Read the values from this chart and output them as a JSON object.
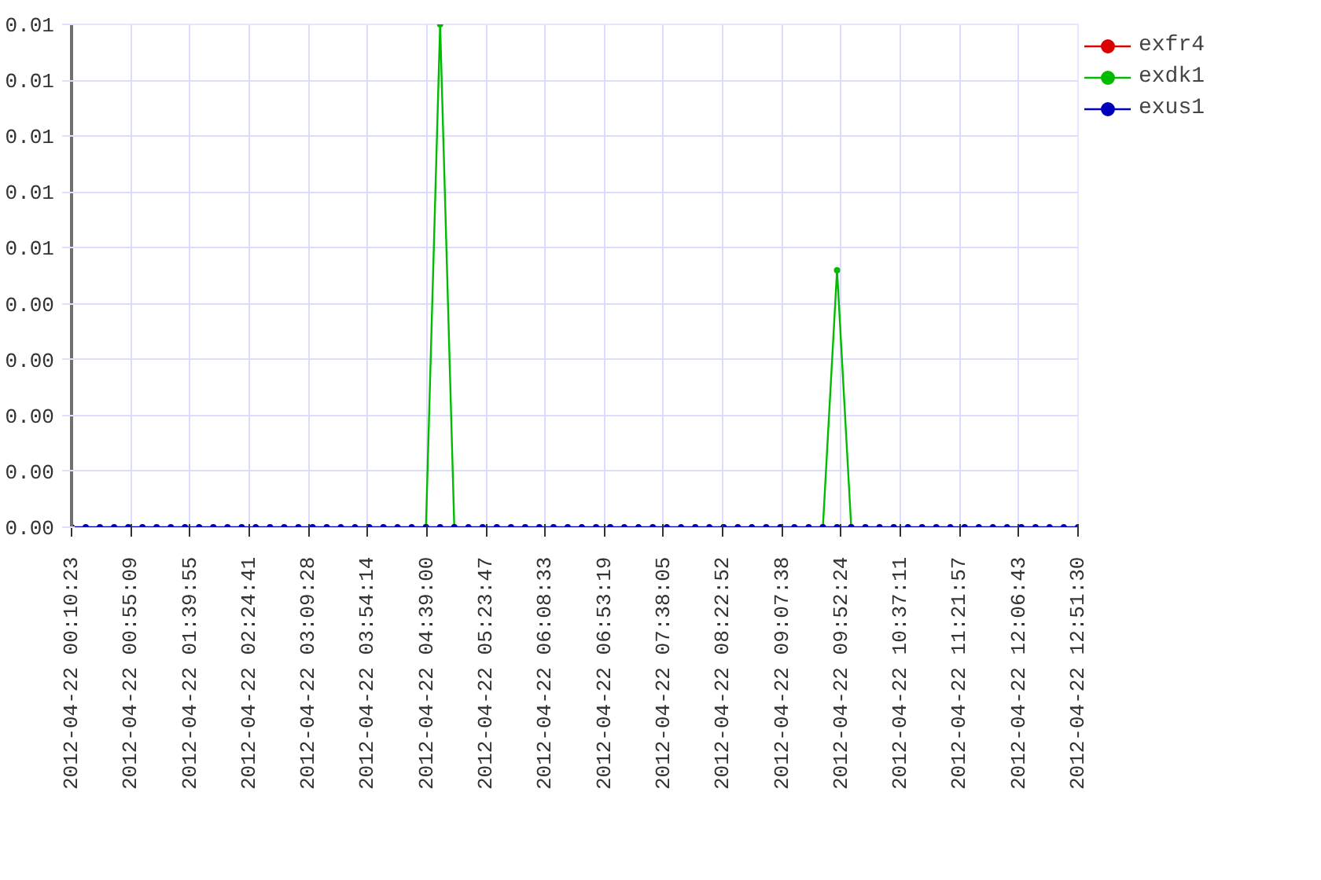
{
  "chart_data": {
    "type": "line",
    "x": [
      "2012-04-22T00:10:23",
      "2012-04-22T00:21:06",
      "2012-04-22T00:31:49",
      "2012-04-22T00:42:33",
      "2012-04-22T00:53:16",
      "2012-04-22T01:03:59",
      "2012-04-22T01:14:42",
      "2012-04-22T01:25:25",
      "2012-04-22T01:36:09",
      "2012-04-22T01:46:52",
      "2012-04-22T01:57:35",
      "2012-04-22T02:08:18",
      "2012-04-22T02:19:01",
      "2012-04-22T02:29:45",
      "2012-04-22T02:40:28",
      "2012-04-22T02:51:11",
      "2012-04-22T03:01:54",
      "2012-04-22T03:12:37",
      "2012-04-22T03:23:21",
      "2012-04-22T03:34:04",
      "2012-04-22T03:44:47",
      "2012-04-22T03:55:30",
      "2012-04-22T04:06:13",
      "2012-04-22T04:16:57",
      "2012-04-22T04:27:40",
      "2012-04-22T04:38:23",
      "2012-04-22T04:49:06",
      "2012-04-22T04:59:49",
      "2012-04-22T05:10:33",
      "2012-04-22T05:21:16",
      "2012-04-22T05:31:59",
      "2012-04-22T05:42:42",
      "2012-04-22T05:53:25",
      "2012-04-22T06:04:09",
      "2012-04-22T06:14:52",
      "2012-04-22T06:25:35",
      "2012-04-22T06:36:18",
      "2012-04-22T06:47:01",
      "2012-04-22T06:57:45",
      "2012-04-22T07:08:28",
      "2012-04-22T07:19:11",
      "2012-04-22T07:29:54",
      "2012-04-22T07:40:37",
      "2012-04-22T07:51:21",
      "2012-04-22T08:02:04",
      "2012-04-22T08:12:47",
      "2012-04-22T08:23:30",
      "2012-04-22T08:34:13",
      "2012-04-22T08:44:57",
      "2012-04-22T08:55:40",
      "2012-04-22T09:06:23",
      "2012-04-22T09:17:06",
      "2012-04-22T09:27:49",
      "2012-04-22T09:38:33",
      "2012-04-22T09:49:16",
      "2012-04-22T09:59:59",
      "2012-04-22T10:10:42",
      "2012-04-22T10:21:25",
      "2012-04-22T10:32:09",
      "2012-04-22T10:42:52",
      "2012-04-22T10:53:35",
      "2012-04-22T11:04:18",
      "2012-04-22T11:15:01",
      "2012-04-22T11:25:45",
      "2012-04-22T11:36:28",
      "2012-04-22T11:47:11",
      "2012-04-22T11:57:54",
      "2012-04-22T12:08:37",
      "2012-04-22T12:19:21",
      "2012-04-22T12:30:04",
      "2012-04-22T12:40:47",
      "2012-04-22T12:51:30"
    ],
    "series": [
      {
        "name": "exfr4",
        "color": "#dd0000",
        "values": [
          null,
          null,
          null,
          null,
          null,
          null,
          null,
          null,
          null,
          null,
          null,
          null,
          null,
          null,
          null,
          null,
          null,
          null,
          null,
          null,
          null,
          null,
          null,
          null,
          null,
          null,
          null,
          null,
          null,
          null,
          null,
          null,
          null,
          null,
          null,
          null,
          null,
          null,
          null,
          null,
          null,
          null,
          null,
          null,
          null,
          null,
          null,
          null,
          null,
          null,
          null,
          null,
          null,
          null,
          null,
          null,
          null,
          null,
          null,
          null,
          null,
          null,
          null,
          null,
          null,
          null,
          null,
          null,
          null,
          null,
          null,
          null
        ]
      },
      {
        "name": "exdk1",
        "color": "#00bb00",
        "values": [
          null,
          null,
          null,
          null,
          null,
          null,
          null,
          null,
          null,
          null,
          null,
          null,
          null,
          null,
          null,
          null,
          null,
          null,
          null,
          null,
          null,
          null,
          null,
          null,
          null,
          0,
          0.009,
          0,
          null,
          null,
          null,
          null,
          null,
          null,
          null,
          null,
          null,
          null,
          null,
          null,
          null,
          null,
          null,
          null,
          null,
          null,
          null,
          null,
          null,
          null,
          null,
          null,
          null,
          0,
          0.0046,
          0,
          null,
          null,
          null,
          null,
          null,
          null,
          null,
          null,
          null,
          null,
          null,
          null,
          null,
          null,
          null,
          null
        ]
      },
      {
        "name": "exus1",
        "color": "#0000bb",
        "values": [
          0,
          0,
          0,
          0,
          0,
          0,
          0,
          0,
          0,
          0,
          0,
          0,
          0,
          0,
          0,
          0,
          0,
          0,
          0,
          0,
          0,
          0,
          0,
          0,
          0,
          0,
          0,
          0,
          0,
          0,
          0,
          0,
          0,
          0,
          0,
          0,
          0,
          0,
          0,
          0,
          0,
          0,
          0,
          0,
          0,
          0,
          0,
          0,
          0,
          0,
          0,
          0,
          0,
          0,
          0,
          0,
          0,
          0,
          0,
          0,
          0,
          0,
          0,
          0,
          0,
          0,
          0,
          0,
          0,
          0,
          0,
          0
        ]
      }
    ],
    "xlim": [
      "2012-04-22T00:10:23",
      "2012-04-22T12:51:30"
    ],
    "xticks": [
      {
        "value": "2012-04-22T00:10:23",
        "label": "2012-04-22  00:10:23"
      },
      {
        "value": "2012-04-22T00:55:09",
        "label": "2012-04-22  00:55:09"
      },
      {
        "value": "2012-04-22T01:39:55",
        "label": "2012-04-22  01:39:55"
      },
      {
        "value": "2012-04-22T02:24:41",
        "label": "2012-04-22  02:24:41"
      },
      {
        "value": "2012-04-22T03:09:28",
        "label": "2012-04-22  03:09:28"
      },
      {
        "value": "2012-04-22T03:54:14",
        "label": "2012-04-22  03:54:14"
      },
      {
        "value": "2012-04-22T04:39:00",
        "label": "2012-04-22  04:39:00"
      },
      {
        "value": "2012-04-22T05:23:47",
        "label": "2012-04-22  05:23:47"
      },
      {
        "value": "2012-04-22T06:08:33",
        "label": "2012-04-22  06:08:33"
      },
      {
        "value": "2012-04-22T06:53:19",
        "label": "2012-04-22  06:53:19"
      },
      {
        "value": "2012-04-22T07:38:05",
        "label": "2012-04-22  07:38:05"
      },
      {
        "value": "2012-04-22T08:22:52",
        "label": "2012-04-22  08:22:52"
      },
      {
        "value": "2012-04-22T09:07:38",
        "label": "2012-04-22  09:07:38"
      },
      {
        "value": "2012-04-22T09:52:24",
        "label": "2012-04-22  09:52:24"
      },
      {
        "value": "2012-04-22T10:37:11",
        "label": "2012-04-22  10:37:11"
      },
      {
        "value": "2012-04-22T11:21:57",
        "label": "2012-04-22  11:21:57"
      },
      {
        "value": "2012-04-22T12:06:43",
        "label": "2012-04-22  12:06:43"
      },
      {
        "value": "2012-04-22T12:51:30",
        "label": "2012-04-22  12:51:30"
      }
    ],
    "ylim": [
      0,
      0.009
    ],
    "yticks": [
      {
        "value": 0,
        "label": "0.00"
      },
      {
        "value": 0.001,
        "label": "0.00"
      },
      {
        "value": 0.002,
        "label": "0.00"
      },
      {
        "value": 0.003,
        "label": "0.00"
      },
      {
        "value": 0.004,
        "label": "0.00"
      },
      {
        "value": 0.005,
        "label": "0.01"
      },
      {
        "value": 0.006,
        "label": "0.01"
      },
      {
        "value": 0.007,
        "label": "0.01"
      },
      {
        "value": 0.008,
        "label": "0.01"
      },
      {
        "value": 0.009,
        "label": "0.01"
      }
    ],
    "grid": true,
    "legend": "top right",
    "marker": "circle",
    "line_style": "solid"
  }
}
